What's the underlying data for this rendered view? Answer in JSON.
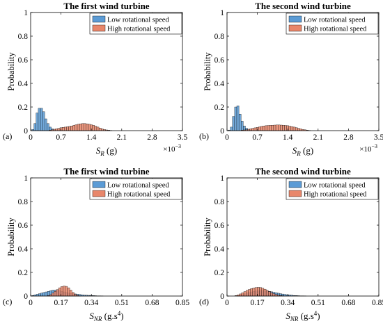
{
  "chart_data": [
    {
      "panel": "(a)",
      "type": "bar",
      "title": "The first wind turbine",
      "ylabel": "Probability",
      "xlabel": {
        "main": "S",
        "sub": "R",
        "unit": " (g)"
      },
      "x_multiplier": {
        "base": "×10",
        "exp": "−3"
      },
      "xlim": [
        0,
        3.5
      ],
      "ylim": [
        0,
        1
      ],
      "xticks": [
        "0",
        "0.7",
        "1.4",
        "2.1",
        "2.8",
        "3.5"
      ],
      "yticks": [
        "0",
        "0.2",
        "0.4",
        "0.6",
        "0.8",
        "1"
      ],
      "legend": {
        "position": "top-right",
        "entries": [
          "Low rotational speed",
          "High rotational speed"
        ]
      },
      "bin_width": 0.05,
      "series": [
        {
          "name": "Low rotational speed",
          "color": "#5b9bd5",
          "bins": [
            [
              0.05,
              0.01
            ],
            [
              0.1,
              0.06
            ],
            [
              0.15,
              0.15
            ],
            [
              0.2,
              0.19
            ],
            [
              0.25,
              0.19
            ],
            [
              0.3,
              0.16
            ],
            [
              0.35,
              0.1
            ],
            [
              0.4,
              0.06
            ],
            [
              0.45,
              0.03
            ],
            [
              0.5,
              0.015
            ],
            [
              0.55,
              0.008
            ]
          ]
        },
        {
          "name": "High rotational speed",
          "color": "#e8866a",
          "bins": [
            [
              0.45,
              0.005
            ],
            [
              0.5,
              0.008
            ],
            [
              0.55,
              0.012
            ],
            [
              0.6,
              0.016
            ],
            [
              0.65,
              0.02
            ],
            [
              0.7,
              0.025
            ],
            [
              0.75,
              0.028
            ],
            [
              0.8,
              0.03
            ],
            [
              0.85,
              0.033
            ],
            [
              0.9,
              0.036
            ],
            [
              0.95,
              0.04
            ],
            [
              1.0,
              0.045
            ],
            [
              1.05,
              0.05
            ],
            [
              1.1,
              0.055
            ],
            [
              1.15,
              0.058
            ],
            [
              1.2,
              0.06
            ],
            [
              1.25,
              0.06
            ],
            [
              1.3,
              0.058
            ],
            [
              1.35,
              0.055
            ],
            [
              1.4,
              0.05
            ],
            [
              1.45,
              0.045
            ],
            [
              1.5,
              0.038
            ],
            [
              1.55,
              0.03
            ],
            [
              1.6,
              0.022
            ],
            [
              1.65,
              0.015
            ],
            [
              1.7,
              0.01
            ],
            [
              1.75,
              0.006
            ],
            [
              1.8,
              0.004
            ],
            [
              1.85,
              0.002
            ]
          ]
        }
      ]
    },
    {
      "panel": "(b)",
      "type": "bar",
      "title": "The second wind turbine",
      "ylabel": "Probability",
      "xlabel": {
        "main": "S",
        "sub": "R",
        "unit": " (g)"
      },
      "x_multiplier": {
        "base": "×10",
        "exp": "−3"
      },
      "xlim": [
        0,
        3.5
      ],
      "ylim": [
        0,
        1
      ],
      "xticks": [
        "0",
        "0.7",
        "1.4",
        "2.1",
        "2.8",
        "3.5"
      ],
      "yticks": [
        "0",
        "0.2",
        "0.4",
        "0.6",
        "0.8",
        "1"
      ],
      "legend": {
        "position": "top-right",
        "entries": [
          "Low rotational speed",
          "High rotational speed"
        ]
      },
      "bin_width": 0.05,
      "series": [
        {
          "name": "Low rotational speed",
          "color": "#5b9bd5",
          "bins": [
            [
              0.05,
              0.005
            ],
            [
              0.1,
              0.03
            ],
            [
              0.15,
              0.12
            ],
            [
              0.2,
              0.2
            ],
            [
              0.25,
              0.21
            ],
            [
              0.3,
              0.14
            ],
            [
              0.35,
              0.08
            ],
            [
              0.4,
              0.04
            ],
            [
              0.45,
              0.02
            ],
            [
              0.5,
              0.01
            ],
            [
              0.55,
              0.005
            ]
          ]
        },
        {
          "name": "High rotational speed",
          "color": "#e8866a",
          "bins": [
            [
              0.35,
              0.004
            ],
            [
              0.4,
              0.006
            ],
            [
              0.45,
              0.008
            ],
            [
              0.5,
              0.012
            ],
            [
              0.55,
              0.016
            ],
            [
              0.6,
              0.02
            ],
            [
              0.65,
              0.024
            ],
            [
              0.7,
              0.028
            ],
            [
              0.75,
              0.032
            ],
            [
              0.8,
              0.036
            ],
            [
              0.85,
              0.04
            ],
            [
              0.9,
              0.042
            ],
            [
              0.95,
              0.044
            ],
            [
              1.0,
              0.045
            ],
            [
              1.05,
              0.046
            ],
            [
              1.1,
              0.047
            ],
            [
              1.15,
              0.048
            ],
            [
              1.2,
              0.048
            ],
            [
              1.25,
              0.047
            ],
            [
              1.3,
              0.046
            ],
            [
              1.35,
              0.044
            ],
            [
              1.4,
              0.042
            ],
            [
              1.45,
              0.038
            ],
            [
              1.5,
              0.034
            ],
            [
              1.55,
              0.03
            ],
            [
              1.6,
              0.025
            ],
            [
              1.65,
              0.02
            ],
            [
              1.7,
              0.015
            ],
            [
              1.75,
              0.01
            ],
            [
              1.8,
              0.007
            ],
            [
              1.85,
              0.004
            ],
            [
              1.9,
              0.002
            ]
          ]
        }
      ]
    },
    {
      "panel": "(c)",
      "type": "bar",
      "title": "The first wind turbine",
      "ylabel": "Probability",
      "xlabel": {
        "main": "S",
        "sub": "NR",
        "unit": " (g.s",
        "unit_sup": "4",
        "unit_end": ")"
      },
      "xlim": [
        0,
        0.85
      ],
      "ylim": [
        0,
        1
      ],
      "xticks": [
        "0",
        "0.17",
        "0.34",
        "0.51",
        "0.68",
        "0.85"
      ],
      "yticks": [
        "0",
        "0.2",
        "0.4",
        "0.6",
        "0.8",
        "1"
      ],
      "legend": {
        "position": "top-right",
        "entries": [
          "Low rotational speed",
          "High rotational speed"
        ]
      },
      "bin_width": 0.0125,
      "series": [
        {
          "name": "Low rotational speed",
          "color": "#5b9bd5",
          "bins": [
            [
              0.0125,
              0.005
            ],
            [
              0.025,
              0.01
            ],
            [
              0.0375,
              0.015
            ],
            [
              0.05,
              0.02
            ],
            [
              0.0625,
              0.025
            ],
            [
              0.075,
              0.03
            ],
            [
              0.0875,
              0.035
            ],
            [
              0.1,
              0.04
            ],
            [
              0.1125,
              0.045
            ],
            [
              0.125,
              0.05
            ],
            [
              0.1375,
              0.05
            ],
            [
              0.15,
              0.048
            ],
            [
              0.1625,
              0.045
            ],
            [
              0.175,
              0.04
            ],
            [
              0.1875,
              0.035
            ],
            [
              0.2,
              0.03
            ],
            [
              0.2125,
              0.025
            ],
            [
              0.225,
              0.022
            ],
            [
              0.2375,
              0.02
            ],
            [
              0.25,
              0.018
            ],
            [
              0.2625,
              0.015
            ],
            [
              0.275,
              0.013
            ],
            [
              0.2875,
              0.01
            ],
            [
              0.3,
              0.008
            ],
            [
              0.3125,
              0.007
            ],
            [
              0.325,
              0.006
            ],
            [
              0.3375,
              0.005
            ],
            [
              0.35,
              0.004
            ],
            [
              0.3625,
              0.003
            ],
            [
              0.375,
              0.002
            ],
            [
              0.3875,
              0.002
            ],
            [
              0.4,
              0.001
            ]
          ]
        },
        {
          "name": "High rotational speed",
          "color": "#e8866a",
          "bins": [
            [
              0.1,
              0.005
            ],
            [
              0.1125,
              0.012
            ],
            [
              0.125,
              0.025
            ],
            [
              0.1375,
              0.04
            ],
            [
              0.15,
              0.055
            ],
            [
              0.1625,
              0.07
            ],
            [
              0.175,
              0.08
            ],
            [
              0.1875,
              0.085
            ],
            [
              0.2,
              0.082
            ],
            [
              0.2125,
              0.07
            ],
            [
              0.225,
              0.05
            ],
            [
              0.2375,
              0.03
            ],
            [
              0.25,
              0.015
            ],
            [
              0.2625,
              0.006
            ],
            [
              0.275,
              0.002
            ]
          ]
        }
      ]
    },
    {
      "panel": "(d)",
      "type": "bar",
      "title": "The second wind turbine",
      "ylabel": "Probability",
      "xlabel": {
        "main": "S",
        "sub": "NR",
        "unit": " (g.s",
        "unit_sup": "4",
        "unit_end": ")"
      },
      "xlim": [
        0,
        0.85
      ],
      "ylim": [
        0,
        1
      ],
      "xticks": [
        "0",
        "0.17",
        "0.34",
        "0.51",
        "0.68",
        "0.85"
      ],
      "yticks": [
        "0",
        "0.2",
        "0.4",
        "0.6",
        "0.8",
        "1"
      ],
      "legend": {
        "position": "top-right",
        "entries": [
          "Low rotational speed",
          "High rotational speed"
        ]
      },
      "bin_width": 0.0125,
      "series": [
        {
          "name": "Low rotational speed",
          "color": "#5b9bd5",
          "bins": [
            [
              0.0625,
              0.005
            ],
            [
              0.075,
              0.008
            ],
            [
              0.0875,
              0.012
            ],
            [
              0.1,
              0.018
            ],
            [
              0.1125,
              0.025
            ],
            [
              0.125,
              0.03
            ],
            [
              0.1375,
              0.035
            ],
            [
              0.15,
              0.04
            ],
            [
              0.1625,
              0.042
            ],
            [
              0.175,
              0.044
            ],
            [
              0.1875,
              0.045
            ],
            [
              0.2,
              0.045
            ],
            [
              0.2125,
              0.044
            ],
            [
              0.225,
              0.042
            ],
            [
              0.2375,
              0.04
            ],
            [
              0.25,
              0.036
            ],
            [
              0.2625,
              0.032
            ],
            [
              0.275,
              0.028
            ],
            [
              0.2875,
              0.024
            ],
            [
              0.3,
              0.02
            ],
            [
              0.3125,
              0.017
            ],
            [
              0.325,
              0.014
            ],
            [
              0.3375,
              0.011
            ],
            [
              0.35,
              0.009
            ],
            [
              0.3625,
              0.007
            ],
            [
              0.375,
              0.005
            ],
            [
              0.3875,
              0.004
            ],
            [
              0.4,
              0.003
            ],
            [
              0.4125,
              0.002
            ],
            [
              0.425,
              0.002
            ],
            [
              0.4375,
              0.001
            ]
          ]
        },
        {
          "name": "High rotational speed",
          "color": "#e8866a",
          "bins": [
            [
              0.05,
              0.004
            ],
            [
              0.0625,
              0.01
            ],
            [
              0.075,
              0.018
            ],
            [
              0.0875,
              0.028
            ],
            [
              0.1,
              0.038
            ],
            [
              0.1125,
              0.048
            ],
            [
              0.125,
              0.056
            ],
            [
              0.1375,
              0.063
            ],
            [
              0.15,
              0.068
            ],
            [
              0.1625,
              0.072
            ],
            [
              0.175,
              0.074
            ],
            [
              0.1875,
              0.072
            ],
            [
              0.2,
              0.066
            ],
            [
              0.2125,
              0.058
            ],
            [
              0.225,
              0.048
            ],
            [
              0.2375,
              0.038
            ],
            [
              0.25,
              0.028
            ],
            [
              0.2625,
              0.02
            ],
            [
              0.275,
              0.013
            ],
            [
              0.2875,
              0.008
            ],
            [
              0.3,
              0.005
            ],
            [
              0.3125,
              0.003
            ]
          ]
        }
      ]
    }
  ]
}
